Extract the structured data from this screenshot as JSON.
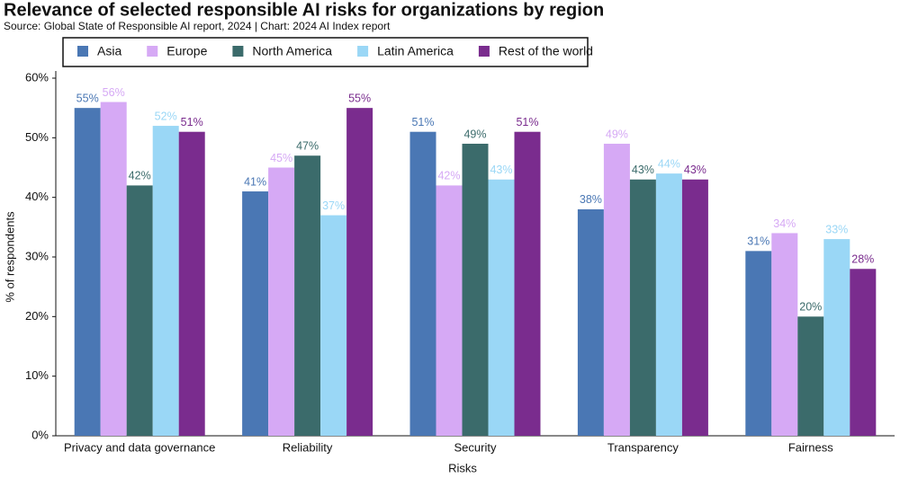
{
  "chart_data": {
    "type": "bar",
    "title": "Relevance of selected responsible AI risks for organizations by region",
    "subtitle": "Source: Global State of Responsible AI report, 2024 | Chart: 2024 AI Index report",
    "x_label": "Risks",
    "y_label": "% of respondents",
    "categories": [
      "Privacy and data governance",
      "Reliability",
      "Security",
      "Transparency",
      "Fairness"
    ],
    "series": [
      {
        "name": "Asia",
        "color": "#4a77b4",
        "values": [
          55,
          41,
          51,
          38,
          31
        ],
        "value_labels": [
          "55%",
          "41%",
          "51%",
          "38%",
          "31%"
        ]
      },
      {
        "name": "Europe",
        "color": "#d6a9f5",
        "values": [
          56,
          45,
          42,
          49,
          34
        ],
        "value_labels": [
          "56%",
          "45%",
          "42%",
          "49%",
          "34%"
        ]
      },
      {
        "name": "North America",
        "color": "#3b6b6b",
        "values": [
          42,
          47,
          49,
          43,
          20
        ],
        "value_labels": [
          "42%",
          "47%",
          "49%",
          "43%",
          "20%"
        ]
      },
      {
        "name": "Latin America",
        "color": "#9ad7f6",
        "values": [
          52,
          37,
          43,
          44,
          33
        ],
        "value_labels": [
          "52%",
          "37%",
          "43%",
          "44%",
          "33%"
        ]
      },
      {
        "name": "Rest of the world",
        "color": "#7a2c8e",
        "values": [
          51,
          55,
          51,
          43,
          28
        ],
        "value_labels": [
          "51%",
          "55%",
          "51%",
          "43%",
          "28%"
        ]
      }
    ],
    "ylim": [
      0,
      60
    ],
    "yticks": [
      {
        "value": 0,
        "label": "0%"
      },
      {
        "value": 10,
        "label": "10%"
      },
      {
        "value": 20,
        "label": "20%"
      },
      {
        "value": 30,
        "label": "30%"
      },
      {
        "value": 40,
        "label": "40%"
      },
      {
        "value": 50,
        "label": "50%"
      },
      {
        "value": 60,
        "label": "60%"
      }
    ],
    "grid": false,
    "legend": "top"
  }
}
